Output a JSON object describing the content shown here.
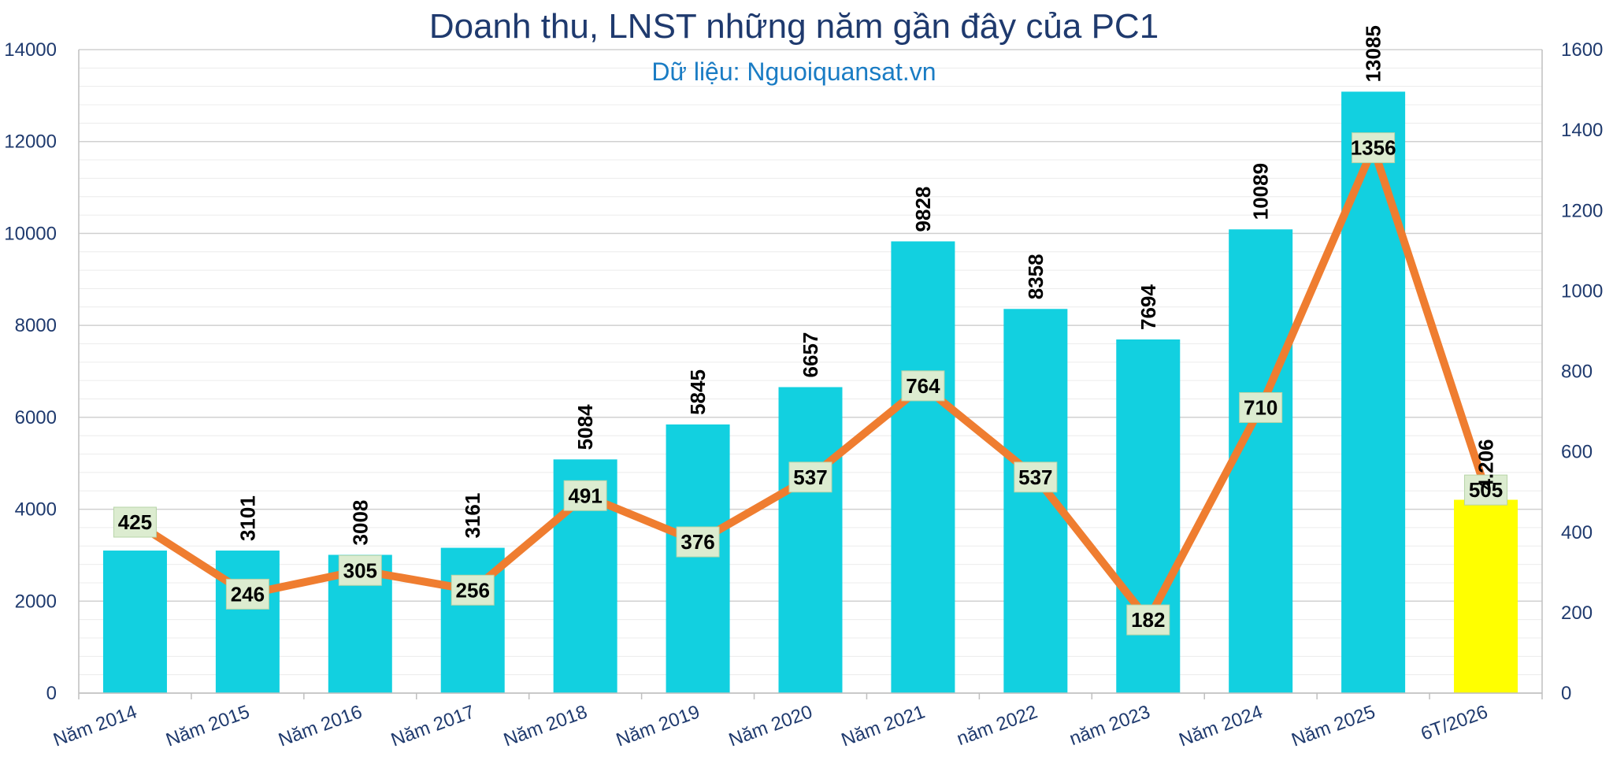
{
  "chart_data": {
    "type": "bar",
    "title": "Doanh thu, LNST những năm gần đây của PC1",
    "subtitle": "Dữ liệu: Nguoiquansat.vn",
    "categories": [
      "Năm 2014",
      "Năm 2015",
      "Năm 2016",
      "Năm 2017",
      "Năm 2018",
      "Năm 2019",
      "Năm 2020",
      "Năm 2021",
      "năm 2022",
      "năm 2023",
      "Năm 2024",
      "Năm 2025",
      "6T/2026"
    ],
    "series": [
      {
        "type": "bar",
        "axis": "left",
        "values": [
          3101,
          3101,
          3008,
          3161,
          5084,
          5845,
          6657,
          9828,
          8358,
          7694,
          10089,
          13085,
          4206
        ],
        "data_labels": [
          "",
          "3101",
          "3008",
          "3161",
          "5084",
          "5845",
          "6657",
          "9828",
          "8358",
          "7694",
          "10089",
          "13085",
          "4.206"
        ],
        "color": "#12d0e0",
        "highlight_color": "#ffff00",
        "highlight_index": 12
      },
      {
        "type": "line",
        "axis": "right",
        "values": [
          425,
          246,
          305,
          256,
          491,
          376,
          537,
          764,
          537,
          182,
          710,
          1356,
          505
        ],
        "color": "#ef7d30"
      }
    ],
    "y_left": {
      "range": [
        0,
        14000
      ],
      "ticks": [
        "0",
        "2000",
        "4000",
        "6000",
        "8000",
        "10000",
        "12000",
        "14000"
      ]
    },
    "y_right": {
      "range": [
        0,
        1600
      ],
      "ticks": [
        "0",
        "200",
        "400",
        "600",
        "800",
        "1000",
        "1200",
        "1400",
        "1600"
      ]
    },
    "grid": true,
    "legend": "none"
  }
}
